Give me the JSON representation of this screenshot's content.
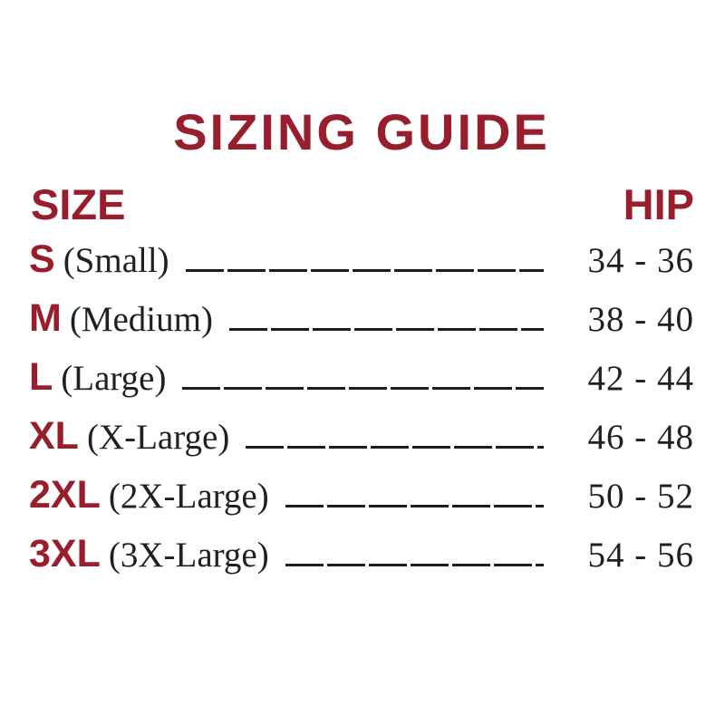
{
  "page": {
    "background_color": "#ffffff",
    "accent_color": "#981d2d",
    "text_color": "#211f21"
  },
  "title": "SIZING GUIDE",
  "table": {
    "size_header": "SIZE",
    "hip_header": "HIP",
    "rows": [
      {
        "size": "S",
        "label": "(Small)",
        "hip": "34 - 36"
      },
      {
        "size": "M",
        "label": "(Medium)",
        "hip": "38 - 40"
      },
      {
        "size": "L",
        "label": "(Large)",
        "hip": "42 - 44"
      },
      {
        "size": "XL",
        "label": "(X-Large)",
        "hip": "46 - 48"
      },
      {
        "size": "2XL",
        "label": "(2X-Large)",
        "hip": "50 - 52"
      },
      {
        "size": "3XL",
        "label": "(3X-Large)",
        "hip": "54 - 56"
      }
    ]
  }
}
